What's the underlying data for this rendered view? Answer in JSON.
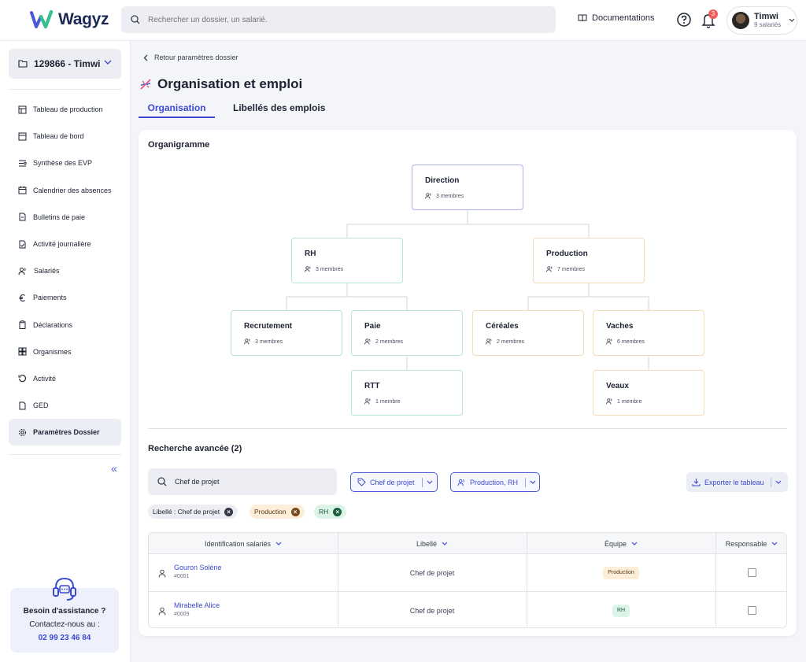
{
  "header": {
    "logo_text": "Wagyz",
    "search_placeholder": "Rechercher un dossier, un salarié.",
    "documentation_label": "Documentations",
    "notifications_count": "3",
    "user_name": "Timwi",
    "user_sub": "9 salariés"
  },
  "sidebar": {
    "dossier": "129866 - Timwi",
    "items": [
      {
        "label": "Tableau de production",
        "icon": "production-table-icon"
      },
      {
        "label": "Tableau de bord",
        "icon": "dashboard-icon"
      },
      {
        "label": "Synthèse des EVP",
        "icon": "evp-summary-icon"
      },
      {
        "label": "Calendrier des absences",
        "icon": "calendar-icon"
      },
      {
        "label": "Bulletins de paie",
        "icon": "payslip-icon"
      },
      {
        "label": "Activité journalière",
        "icon": "daily-activity-icon"
      },
      {
        "label": "Salariés",
        "icon": "employees-icon"
      },
      {
        "label": "Paiements",
        "icon": "euro-icon"
      },
      {
        "label": "Déclarations",
        "icon": "clipboard-icon"
      },
      {
        "label": "Organismes",
        "icon": "organisations-icon"
      },
      {
        "label": "Activité",
        "icon": "history-icon"
      },
      {
        "label": "GED",
        "icon": "document-icon"
      },
      {
        "label": "Paramètres Dossier",
        "icon": "settings-icon"
      }
    ],
    "active_index": 12,
    "collapse_label": "«",
    "assist": {
      "title": "Besoin d'assistance ?",
      "subtitle": "Contactez-nous au :",
      "phone": "02 99 23 46 84"
    }
  },
  "page": {
    "back_label": "Retour paramètres dossier",
    "title": "Organisation et emploi",
    "tabs": [
      {
        "label": "Organisation",
        "active": true
      },
      {
        "label": "Libellés des emplois",
        "active": false
      }
    ]
  },
  "orgchart": {
    "title": "Organigramme",
    "nodes": {
      "direction": {
        "name": "Direction",
        "members": "3 membres"
      },
      "rh": {
        "name": "RH",
        "members": "3 membres"
      },
      "production": {
        "name": "Production",
        "members": "7 membres"
      },
      "recrutement": {
        "name": "Recrutement",
        "members": "3 membres"
      },
      "paie": {
        "name": "Paie",
        "members": "2 membres"
      },
      "cereales": {
        "name": "Céréales",
        "members": "2 membres"
      },
      "vaches": {
        "name": "Vaches",
        "members": "6 membres"
      },
      "rtt": {
        "name": "RTT",
        "members": "1 membre"
      },
      "veaux": {
        "name": "Veaux",
        "members": "1 membre"
      }
    }
  },
  "advanced_search": {
    "title": "Recherche avancée (2)",
    "search_value": "Chef de projet",
    "filter_label": "Chef de projet",
    "filter_team": "Production, RH",
    "export_label": "Exporter le tableau",
    "chips": [
      {
        "label": "Libellé : Chef de projet"
      },
      {
        "label": "Production"
      },
      {
        "label": "RH"
      }
    ],
    "columns": [
      "Identification salariés",
      "Libellé",
      "Équipe",
      "Responsable"
    ],
    "rows": [
      {
        "name": "Gouron Solène",
        "id": "#0001",
        "label": "Chef de projet",
        "team": "Production"
      },
      {
        "name": "Mirabelle Alice",
        "id": "#0009",
        "label": "Chef de projet",
        "team": "RH"
      }
    ]
  },
  "colors": {
    "accent": "#3c4bd0",
    "green_border": "#b7e6d1",
    "orange_border": "#f5dcbb"
  }
}
